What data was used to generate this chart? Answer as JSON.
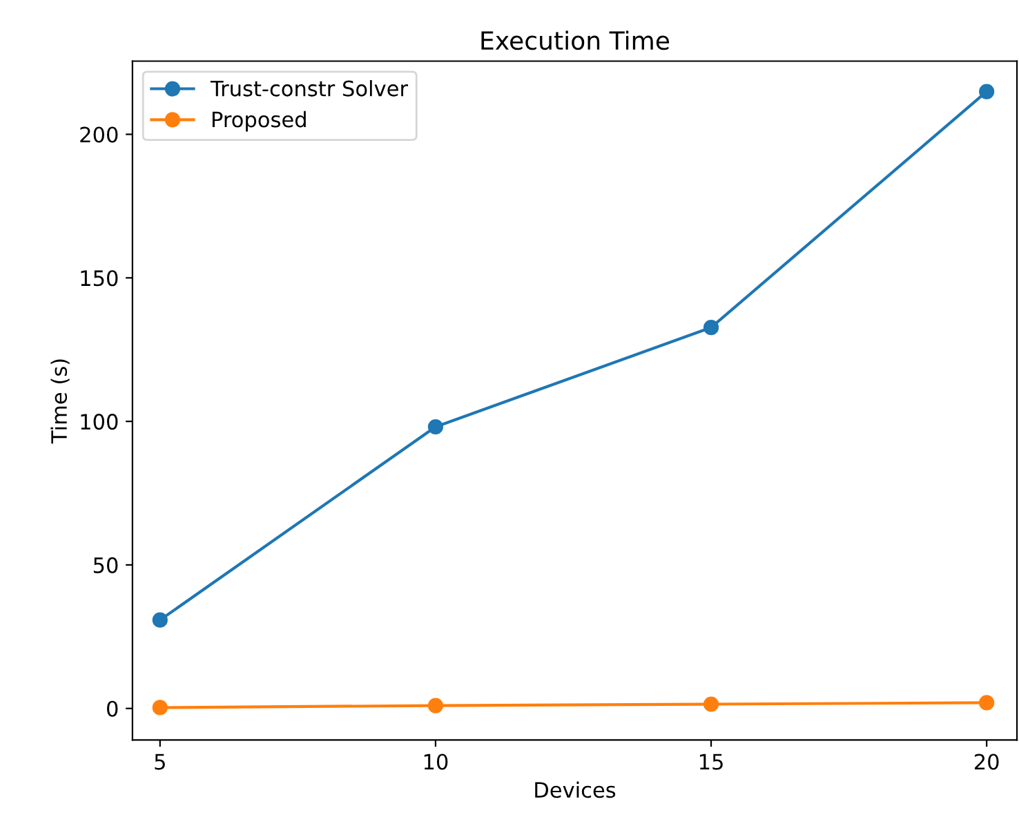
{
  "chart_data": {
    "type": "line",
    "title": "Execution Time",
    "xlabel": "Devices",
    "ylabel": "Time (s)",
    "x": [
      5,
      10,
      15,
      20
    ],
    "series": [
      {
        "name": "Trust-constr Solver",
        "color": "#1f77b4",
        "values": [
          30.8,
          98.1,
          132.7,
          214.9
        ]
      },
      {
        "name": "Proposed",
        "color": "#ff7f0e",
        "values": [
          0.3,
          1.0,
          1.5,
          2.0
        ]
      }
    ],
    "xlim": [
      4.5,
      20.55
    ],
    "xticks": [
      5,
      10,
      15,
      20
    ],
    "ylim": [
      -11,
      225.5
    ],
    "yticks": [
      0,
      50,
      100,
      150,
      200
    ],
    "marker": "circle",
    "line_style": "solid",
    "grid": false,
    "legend": "top left"
  }
}
